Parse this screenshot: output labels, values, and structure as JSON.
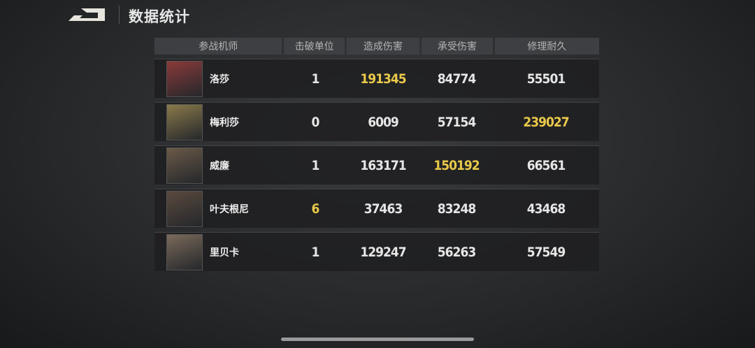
{
  "header": {
    "title": "数据统计",
    "back_icon": "back-arrow-icon"
  },
  "table": {
    "columns": [
      "参战机师",
      "击破单位",
      "造成伤害",
      "承受伤害",
      "修理耐久"
    ],
    "highlight_color": "#e9c94a",
    "rows": [
      {
        "name": "洛莎",
        "kills": "1",
        "dealt": "191345",
        "taken": "84774",
        "repair": "55501",
        "avatar": "#8a3a3a",
        "hl": [
          2
        ]
      },
      {
        "name": "梅利莎",
        "kills": "0",
        "dealt": "6009",
        "taken": "57154",
        "repair": "239027",
        "avatar": "#8a7a4a",
        "hl": [
          4
        ]
      },
      {
        "name": "威廉",
        "kills": "1",
        "dealt": "163171",
        "taken": "150192",
        "repair": "66561",
        "avatar": "#6a5a48",
        "hl": [
          3
        ]
      },
      {
        "name": "叶夫根尼",
        "kills": "6",
        "dealt": "37463",
        "taken": "83248",
        "repair": "43468",
        "avatar": "#5a4a3e",
        "hl": [
          1
        ]
      },
      {
        "name": "里贝卡",
        "kills": "1",
        "dealt": "129247",
        "taken": "56263",
        "repair": "57549",
        "avatar": "#7a6a5a",
        "hl": []
      }
    ]
  }
}
